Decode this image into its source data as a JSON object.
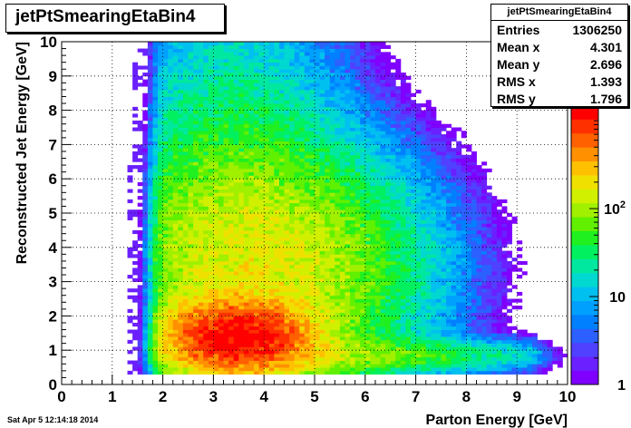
{
  "window": {
    "title": "jetPtSmearingEtaBin4"
  },
  "stats": {
    "name": "jetPtSmearingEtaBin4",
    "rows": [
      {
        "key": "Entries",
        "value": "1306250"
      },
      {
        "key": "Mean x",
        "value": "4.301"
      },
      {
        "key": "Mean y",
        "value": "2.696"
      },
      {
        "key": "RMS x",
        "value": "1.393"
      },
      {
        "key": "RMS y",
        "value": "1.796"
      }
    ]
  },
  "footer": {
    "timestamp": "Sat Apr  5 12:14:18 2014"
  },
  "chart_data": {
    "type": "heatmap",
    "title": "jetPtSmearingEtaBin4",
    "xlabel": "Parton Energy [GeV]",
    "ylabel": "Reconstructed Jet Energy [GeV]",
    "xlim": [
      0,
      10
    ],
    "ylim": [
      0,
      10
    ],
    "xticks": [
      "0",
      "1",
      "2",
      "3",
      "4",
      "5",
      "6",
      "7",
      "8",
      "9",
      "10"
    ],
    "yticks": [
      "0",
      "1",
      "2",
      "3",
      "4",
      "5",
      "6",
      "7",
      "8",
      "9",
      "10"
    ],
    "grid": true,
    "z_scale": "log",
    "z_range": [
      1,
      1500
    ],
    "z_ticks": [
      "1",
      "10",
      "10^2"
    ],
    "bins": {
      "nx": 100,
      "ny": 100
    },
    "peak": {
      "x": 3.5,
      "y": 1.4
    },
    "palette": [
      "#7f00ff",
      "#6a20ff",
      "#5040ff",
      "#2c60ff",
      "#0080ff",
      "#00a0ff",
      "#00c0f0",
      "#00d8d0",
      "#00e8a0",
      "#00f060",
      "#20f020",
      "#60f000",
      "#a0f000",
      "#d0f000",
      "#f0e000",
      "#ffc000",
      "#ff9000",
      "#ff6000",
      "#ff3000",
      "#ff0000"
    ]
  }
}
